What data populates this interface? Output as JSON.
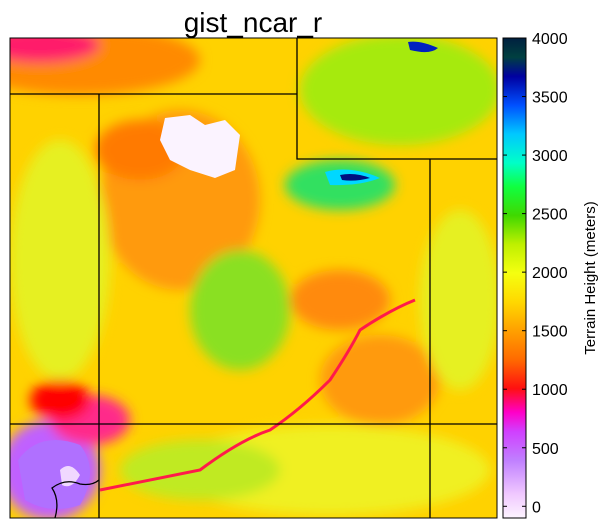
{
  "chart_data": {
    "type": "heatmap",
    "title": "gist_ncar_r",
    "colormap": "gist_ncar_r",
    "map_content": "terrain elevation map with state boundary lines",
    "colorbar": {
      "label": "Terrain Height (meters)",
      "vmin": -100,
      "vmax": 4000,
      "ticks": [
        0,
        500,
        1000,
        1500,
        2000,
        2500,
        3000,
        3500,
        4000
      ],
      "tick_labels": [
        "0",
        "500",
        "1000",
        "1500",
        "2000",
        "2500",
        "3000",
        "3500",
        "4000"
      ]
    }
  }
}
